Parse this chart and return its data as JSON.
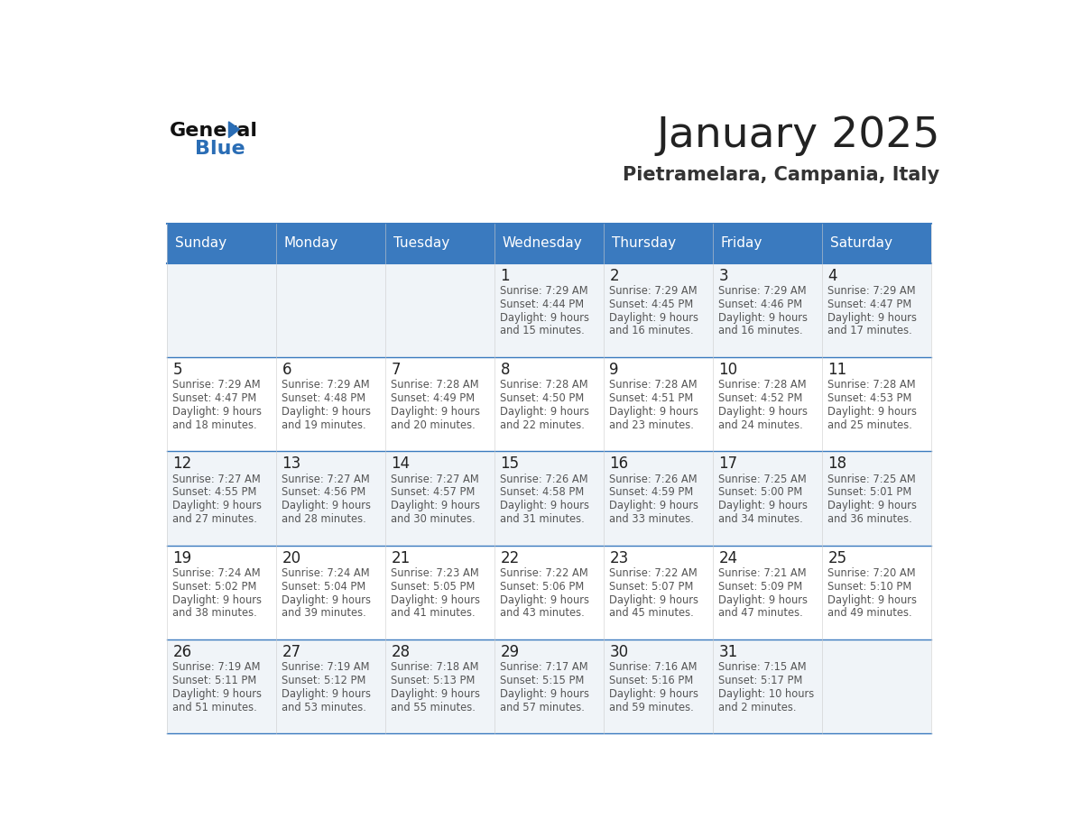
{
  "title": "January 2025",
  "subtitle": "Pietramelara, Campania, Italy",
  "header_bg_color": "#3a7abf",
  "header_text_color": "#ffffff",
  "cell_bg_odd": "#f0f4f8",
  "cell_bg_even": "#ffffff",
  "border_color": "#3a7abf",
  "day_names": [
    "Sunday",
    "Monday",
    "Tuesday",
    "Wednesday",
    "Thursday",
    "Friday",
    "Saturday"
  ],
  "title_color": "#222222",
  "subtitle_color": "#333333",
  "day_num_color": "#222222",
  "cell_text_color": "#555555",
  "logo_general_color": "#111111",
  "logo_blue_color": "#2a6db5",
  "weeks": [
    [
      {
        "day": 0,
        "sunrise": "",
        "sunset": "",
        "daylight": ""
      },
      {
        "day": 0,
        "sunrise": "",
        "sunset": "",
        "daylight": ""
      },
      {
        "day": 0,
        "sunrise": "",
        "sunset": "",
        "daylight": ""
      },
      {
        "day": 1,
        "sunrise": "7:29 AM",
        "sunset": "4:44 PM",
        "daylight_line1": "9 hours",
        "daylight_line2": "and 15 minutes."
      },
      {
        "day": 2,
        "sunrise": "7:29 AM",
        "sunset": "4:45 PM",
        "daylight_line1": "9 hours",
        "daylight_line2": "and 16 minutes."
      },
      {
        "day": 3,
        "sunrise": "7:29 AM",
        "sunset": "4:46 PM",
        "daylight_line1": "9 hours",
        "daylight_line2": "and 16 minutes."
      },
      {
        "day": 4,
        "sunrise": "7:29 AM",
        "sunset": "4:47 PM",
        "daylight_line1": "9 hours",
        "daylight_line2": "and 17 minutes."
      }
    ],
    [
      {
        "day": 5,
        "sunrise": "7:29 AM",
        "sunset": "4:47 PM",
        "daylight_line1": "9 hours",
        "daylight_line2": "and 18 minutes."
      },
      {
        "day": 6,
        "sunrise": "7:29 AM",
        "sunset": "4:48 PM",
        "daylight_line1": "9 hours",
        "daylight_line2": "and 19 minutes."
      },
      {
        "day": 7,
        "sunrise": "7:28 AM",
        "sunset": "4:49 PM",
        "daylight_line1": "9 hours",
        "daylight_line2": "and 20 minutes."
      },
      {
        "day": 8,
        "sunrise": "7:28 AM",
        "sunset": "4:50 PM",
        "daylight_line1": "9 hours",
        "daylight_line2": "and 22 minutes."
      },
      {
        "day": 9,
        "sunrise": "7:28 AM",
        "sunset": "4:51 PM",
        "daylight_line1": "9 hours",
        "daylight_line2": "and 23 minutes."
      },
      {
        "day": 10,
        "sunrise": "7:28 AM",
        "sunset": "4:52 PM",
        "daylight_line1": "9 hours",
        "daylight_line2": "and 24 minutes."
      },
      {
        "day": 11,
        "sunrise": "7:28 AM",
        "sunset": "4:53 PM",
        "daylight_line1": "9 hours",
        "daylight_line2": "and 25 minutes."
      }
    ],
    [
      {
        "day": 12,
        "sunrise": "7:27 AM",
        "sunset": "4:55 PM",
        "daylight_line1": "9 hours",
        "daylight_line2": "and 27 minutes."
      },
      {
        "day": 13,
        "sunrise": "7:27 AM",
        "sunset": "4:56 PM",
        "daylight_line1": "9 hours",
        "daylight_line2": "and 28 minutes."
      },
      {
        "day": 14,
        "sunrise": "7:27 AM",
        "sunset": "4:57 PM",
        "daylight_line1": "9 hours",
        "daylight_line2": "and 30 minutes."
      },
      {
        "day": 15,
        "sunrise": "7:26 AM",
        "sunset": "4:58 PM",
        "daylight_line1": "9 hours",
        "daylight_line2": "and 31 minutes."
      },
      {
        "day": 16,
        "sunrise": "7:26 AM",
        "sunset": "4:59 PM",
        "daylight_line1": "9 hours",
        "daylight_line2": "and 33 minutes."
      },
      {
        "day": 17,
        "sunrise": "7:25 AM",
        "sunset": "5:00 PM",
        "daylight_line1": "9 hours",
        "daylight_line2": "and 34 minutes."
      },
      {
        "day": 18,
        "sunrise": "7:25 AM",
        "sunset": "5:01 PM",
        "daylight_line1": "9 hours",
        "daylight_line2": "and 36 minutes."
      }
    ],
    [
      {
        "day": 19,
        "sunrise": "7:24 AM",
        "sunset": "5:02 PM",
        "daylight_line1": "9 hours",
        "daylight_line2": "and 38 minutes."
      },
      {
        "day": 20,
        "sunrise": "7:24 AM",
        "sunset": "5:04 PM",
        "daylight_line1": "9 hours",
        "daylight_line2": "and 39 minutes."
      },
      {
        "day": 21,
        "sunrise": "7:23 AM",
        "sunset": "5:05 PM",
        "daylight_line1": "9 hours",
        "daylight_line2": "and 41 minutes."
      },
      {
        "day": 22,
        "sunrise": "7:22 AM",
        "sunset": "5:06 PM",
        "daylight_line1": "9 hours",
        "daylight_line2": "and 43 minutes."
      },
      {
        "day": 23,
        "sunrise": "7:22 AM",
        "sunset": "5:07 PM",
        "daylight_line1": "9 hours",
        "daylight_line2": "and 45 minutes."
      },
      {
        "day": 24,
        "sunrise": "7:21 AM",
        "sunset": "5:09 PM",
        "daylight_line1": "9 hours",
        "daylight_line2": "and 47 minutes."
      },
      {
        "day": 25,
        "sunrise": "7:20 AM",
        "sunset": "5:10 PM",
        "daylight_line1": "9 hours",
        "daylight_line2": "and 49 minutes."
      }
    ],
    [
      {
        "day": 26,
        "sunrise": "7:19 AM",
        "sunset": "5:11 PM",
        "daylight_line1": "9 hours",
        "daylight_line2": "and 51 minutes."
      },
      {
        "day": 27,
        "sunrise": "7:19 AM",
        "sunset": "5:12 PM",
        "daylight_line1": "9 hours",
        "daylight_line2": "and 53 minutes."
      },
      {
        "day": 28,
        "sunrise": "7:18 AM",
        "sunset": "5:13 PM",
        "daylight_line1": "9 hours",
        "daylight_line2": "and 55 minutes."
      },
      {
        "day": 29,
        "sunrise": "7:17 AM",
        "sunset": "5:15 PM",
        "daylight_line1": "9 hours",
        "daylight_line2": "and 57 minutes."
      },
      {
        "day": 30,
        "sunrise": "7:16 AM",
        "sunset": "5:16 PM",
        "daylight_line1": "9 hours",
        "daylight_line2": "and 59 minutes."
      },
      {
        "day": 31,
        "sunrise": "7:15 AM",
        "sunset": "5:17 PM",
        "daylight_line1": "10 hours",
        "daylight_line2": "and 2 minutes."
      },
      {
        "day": 0,
        "sunrise": "",
        "sunset": "",
        "daylight_line1": "",
        "daylight_line2": ""
      }
    ]
  ]
}
